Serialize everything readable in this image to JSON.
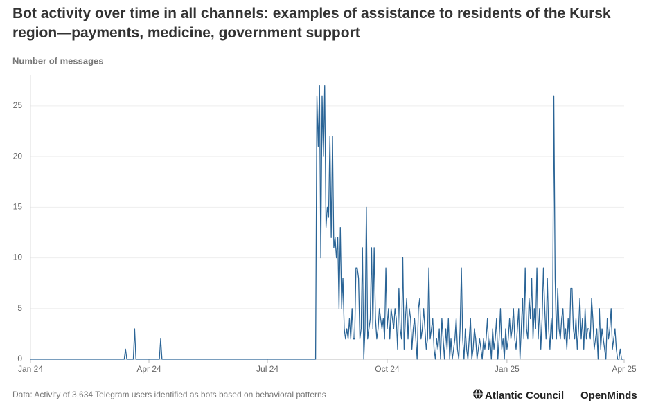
{
  "chart_data": {
    "type": "line",
    "title": "Bot activity over time in all channels: examples of assistance to residents of the Kursk region—payments, medicine, government support",
    "y_label": "Number of messages",
    "note": "Data: Activity of 3,634 Telegram users identified as bots based on behavioral patterns",
    "logos": [
      "Atlantic Council",
      "OpenMinds"
    ],
    "color": "#2a6496",
    "grid": true,
    "xlim": [
      0,
      456
    ],
    "xticks": [
      {
        "value": 0,
        "label": "Jan 24"
      },
      {
        "value": 91,
        "label": "Apr 24"
      },
      {
        "value": 182,
        "label": "Jul 24"
      },
      {
        "value": 274,
        "label": "Oct 24"
      },
      {
        "value": 366,
        "label": "Jan 25"
      },
      {
        "value": 456,
        "label": "Apr 25"
      }
    ],
    "ylim": [
      0,
      28
    ],
    "yticks": [
      0,
      5,
      10,
      15,
      20,
      25
    ],
    "x": [
      0,
      72,
      73,
      74,
      79,
      80,
      81,
      99,
      100,
      101,
      219,
      220,
      221,
      222,
      223,
      224,
      225,
      226,
      227,
      228,
      229,
      230,
      231,
      232,
      233,
      234,
      235,
      236,
      237,
      238,
      239,
      240,
      241,
      242,
      243,
      244,
      245,
      246,
      247,
      248,
      249,
      250,
      251,
      252,
      253,
      254,
      255,
      256,
      257,
      258,
      259,
      260,
      261,
      262,
      263,
      264,
      265,
      266,
      267,
      268,
      269,
      270,
      271,
      272,
      273,
      274,
      275,
      276,
      277,
      278,
      279,
      280,
      281,
      282,
      283,
      284,
      285,
      286,
      287,
      288,
      289,
      290,
      291,
      292,
      293,
      294,
      295,
      296,
      297,
      298,
      299,
      300,
      301,
      302,
      303,
      304,
      305,
      306,
      307,
      308,
      309,
      310,
      311,
      312,
      313,
      314,
      315,
      316,
      317,
      318,
      319,
      320,
      321,
      322,
      323,
      324,
      325,
      326,
      327,
      328,
      329,
      330,
      331,
      332,
      333,
      334,
      335,
      336,
      337,
      338,
      339,
      340,
      341,
      342,
      343,
      344,
      345,
      346,
      347,
      348,
      349,
      350,
      351,
      352,
      353,
      354,
      355,
      356,
      357,
      358,
      359,
      360,
      361,
      362,
      363,
      364,
      365,
      366,
      367,
      368,
      369,
      370,
      371,
      372,
      373,
      374,
      375,
      376,
      377,
      378,
      379,
      380,
      381,
      382,
      383,
      384,
      385,
      386,
      387,
      388,
      389,
      390,
      391,
      392,
      393,
      394,
      395,
      396,
      397,
      398,
      399,
      400,
      401,
      402,
      403,
      404,
      405,
      406,
      407,
      408,
      409,
      410,
      411,
      412,
      413,
      414,
      415,
      416,
      417,
      418,
      419,
      420,
      421,
      422,
      423,
      424,
      425,
      426,
      427,
      428,
      429,
      430,
      431,
      432,
      433,
      434,
      435,
      436,
      437,
      438,
      439,
      440,
      441,
      442,
      443,
      444,
      445,
      446,
      447,
      448,
      449,
      450,
      451,
      452,
      453,
      454,
      455
    ],
    "values": [
      0,
      0,
      1,
      0,
      0,
      3,
      0,
      0,
      2,
      0,
      0,
      26,
      21,
      27,
      10,
      26,
      20,
      27,
      13,
      15,
      14,
      22,
      12,
      22,
      11,
      12,
      10,
      12,
      5,
      13,
      5,
      8,
      3,
      2,
      3,
      2,
      4,
      2,
      5,
      2,
      2,
      9,
      9,
      8,
      2,
      3,
      11,
      0,
      3,
      15,
      2,
      3,
      4,
      11,
      3,
      11,
      4,
      2,
      3,
      5,
      4,
      3,
      4,
      2,
      9,
      3,
      5,
      2,
      5,
      4,
      3,
      5,
      4,
      1,
      7,
      3,
      2,
      10,
      1,
      4,
      6,
      2,
      5,
      4,
      1,
      3,
      4,
      2,
      0,
      5,
      6,
      2,
      3,
      5,
      3,
      1,
      2,
      9,
      2,
      3,
      4,
      1,
      0,
      2,
      1,
      3,
      0,
      4,
      2,
      0,
      3,
      1,
      4,
      0,
      2,
      0,
      1,
      2,
      4,
      1,
      0,
      3,
      9,
      2,
      0,
      3,
      1,
      0,
      2,
      4,
      0,
      1,
      3,
      2,
      0,
      1,
      2,
      1,
      0,
      2,
      1,
      2,
      4,
      1,
      2,
      0,
      3,
      1,
      2,
      4,
      0,
      2,
      5,
      1,
      2,
      0,
      3,
      1,
      2,
      4,
      2,
      3,
      5,
      2,
      1,
      3,
      5,
      0,
      3,
      6,
      2,
      9,
      3,
      2,
      6,
      4,
      8,
      2,
      5,
      3,
      9,
      2,
      5,
      1,
      4,
      9,
      5,
      2,
      8,
      3,
      1,
      4,
      2,
      26,
      8,
      2,
      7,
      3,
      2,
      4,
      5,
      2,
      3,
      1,
      4,
      2,
      7,
      7,
      3,
      2,
      4,
      1,
      3,
      6,
      2,
      4,
      1,
      5,
      2,
      3,
      3,
      2,
      6,
      4,
      1,
      2,
      3,
      0,
      5,
      1,
      3,
      2,
      1,
      0,
      4,
      2,
      3,
      5,
      1,
      2,
      3,
      1,
      0,
      0,
      1,
      0,
      0
    ]
  }
}
